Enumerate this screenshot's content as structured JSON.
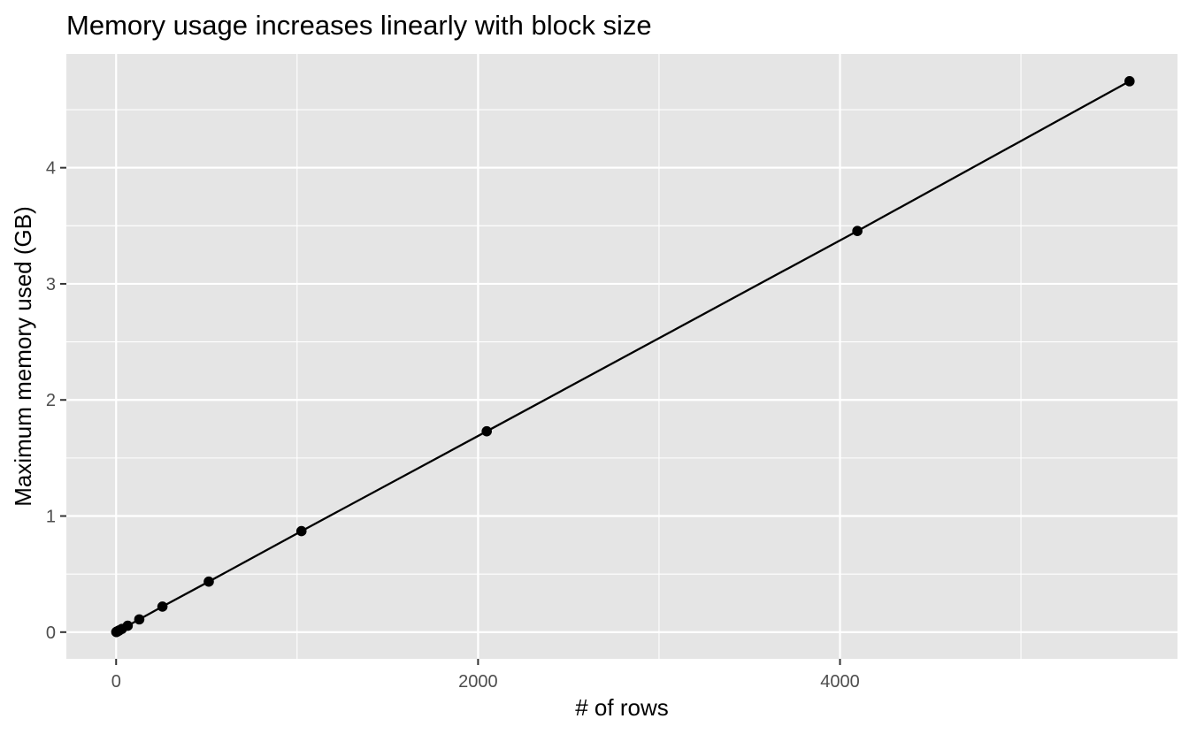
{
  "chart_data": {
    "type": "line",
    "title": "Memory usage increases linearly with block size",
    "xlabel": "# of rows",
    "ylabel": "Maximum memory used (GB)",
    "xlim": [
      -275,
      5865
    ],
    "ylim": [
      -0.23,
      4.98
    ],
    "x_ticks": [
      0,
      2000,
      4000
    ],
    "x_tick_labels": [
      "0",
      "2000",
      "4000"
    ],
    "x_minor_ticks": [
      1000,
      3000,
      5000
    ],
    "y_ticks": [
      0,
      1,
      2,
      3,
      4
    ],
    "y_tick_labels": [
      "0",
      "1",
      "2",
      "3",
      "4"
    ],
    "y_minor_ticks": [
      0.5,
      1.5,
      2.5,
      3.5,
      4.5
    ],
    "grid": true,
    "legend": "none",
    "series": [
      {
        "x": [
          1,
          2,
          4,
          8,
          16,
          32,
          64,
          128,
          256,
          512,
          1024,
          2048,
          4096,
          5600
        ],
        "y": [
          0.001,
          0.002,
          0.004,
          0.007,
          0.014,
          0.028,
          0.055,
          0.11,
          0.22,
          0.435,
          0.87,
          1.73,
          3.455,
          4.745
        ]
      }
    ],
    "colors": {
      "panel": "#e5e5e5",
      "grid": "#ffffff",
      "line": "#000000",
      "points": "#000000"
    }
  }
}
